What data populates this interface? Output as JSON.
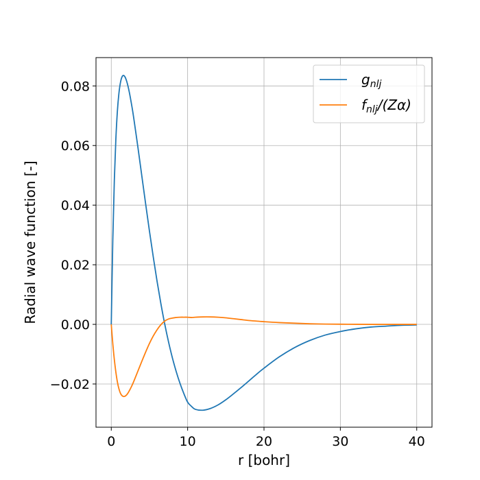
{
  "chart_data": {
    "type": "line",
    "xlabel": "r [bohr]",
    "ylabel": "Radial wave function [-]",
    "xlim": [
      -2,
      42
    ],
    "ylim": [
      -0.0345,
      0.0895
    ],
    "x_ticks": [
      0,
      10,
      20,
      30,
      40
    ],
    "x_tick_labels": [
      "0",
      "10",
      "20",
      "30",
      "40"
    ],
    "y_ticks": [
      -0.02,
      0.0,
      0.02,
      0.04,
      0.06,
      0.08
    ],
    "y_tick_labels": [
      "−0.02",
      "0.00",
      "0.02",
      "0.04",
      "0.06",
      "0.08"
    ],
    "grid": true,
    "legend_position": "top-right",
    "series": [
      {
        "name": "g_nlj",
        "legend_main": "g",
        "legend_sub": "nlj",
        "legend_suffix": "",
        "color": "#1f77b4",
        "x": [
          0,
          0.2,
          0.4,
          0.6,
          0.8,
          1.0,
          1.2,
          1.4,
          1.6,
          1.8,
          2.0,
          2.2,
          2.4,
          2.6,
          2.8,
          3.0,
          3.5,
          4.0,
          4.5,
          5.0,
          5.5,
          6.0,
          6.5,
          7.0,
          7.5,
          8.0,
          8.5,
          9.0,
          9.5,
          10.0,
          10.5,
          11.0,
          12.0,
          13.0,
          14.0,
          15.0,
          16.0,
          17.0,
          18.0,
          19.0,
          20.0,
          22.0,
          24.0,
          26.0,
          28.0,
          30.0,
          32.0,
          34.0,
          36.0,
          38.0,
          40.0
        ],
        "values": [
          0.0,
          0.0283,
          0.0483,
          0.0621,
          0.0715,
          0.0775,
          0.0811,
          0.083,
          0.0835,
          0.083,
          0.0817,
          0.0798,
          0.0774,
          0.0746,
          0.0716,
          0.0682,
          0.0592,
          0.0498,
          0.0404,
          0.0313,
          0.0226,
          0.0144,
          0.0069,
          0.0001,
          -0.0059,
          -0.0112,
          -0.0158,
          -0.0198,
          -0.0232,
          -0.0261,
          -0.0275,
          -0.0285,
          -0.0288,
          -0.0282,
          -0.027,
          -0.0253,
          -0.0233,
          -0.0212,
          -0.019,
          -0.0168,
          -0.0147,
          -0.0109,
          -0.0078,
          -0.0054,
          -0.0036,
          -0.0024,
          -0.0015,
          -0.0009,
          -0.0006,
          -0.0003,
          -0.0002
        ]
      },
      {
        "name": "f_nlj/(Zα)",
        "legend_main": "f",
        "legend_sub": "nlj",
        "legend_suffix": "/(Zα)",
        "color": "#ff7f0e",
        "x": [
          0,
          0.2,
          0.4,
          0.6,
          0.8,
          1.0,
          1.2,
          1.4,
          1.6,
          1.8,
          2.0,
          2.2,
          2.4,
          2.6,
          2.8,
          3.0,
          3.5,
          4.0,
          4.5,
          5.0,
          5.5,
          6.0,
          6.5,
          7.0,
          7.5,
          8.0,
          8.5,
          9.0,
          9.5,
          10.0,
          10.5,
          11.0,
          12.0,
          13.0,
          14.0,
          15.0,
          16.0,
          17.0,
          18.0,
          19.0,
          20.0,
          22.0,
          24.0,
          26.0,
          28.0,
          30.0,
          32.0,
          34.0,
          36.0,
          38.0,
          40.0
        ],
        "values": [
          0.0,
          -0.0065,
          -0.0118,
          -0.016,
          -0.0193,
          -0.0216,
          -0.0231,
          -0.0239,
          -0.0242,
          -0.0241,
          -0.0237,
          -0.023,
          -0.0221,
          -0.0211,
          -0.02,
          -0.0188,
          -0.0156,
          -0.0124,
          -0.0093,
          -0.0064,
          -0.0039,
          -0.0018,
          -0.0001,
          0.0011,
          0.0018,
          0.0021,
          0.0023,
          0.0024,
          0.0024,
          0.0024,
          0.0023,
          0.0024,
          0.0025,
          0.0025,
          0.0024,
          0.0022,
          0.0019,
          0.0016,
          0.0013,
          0.0011,
          0.0009,
          0.0006,
          0.0004,
          0.0002,
          0.0001,
          5e-05,
          2e-05,
          0.0,
          0.0,
          0.0,
          0.0
        ]
      }
    ]
  }
}
